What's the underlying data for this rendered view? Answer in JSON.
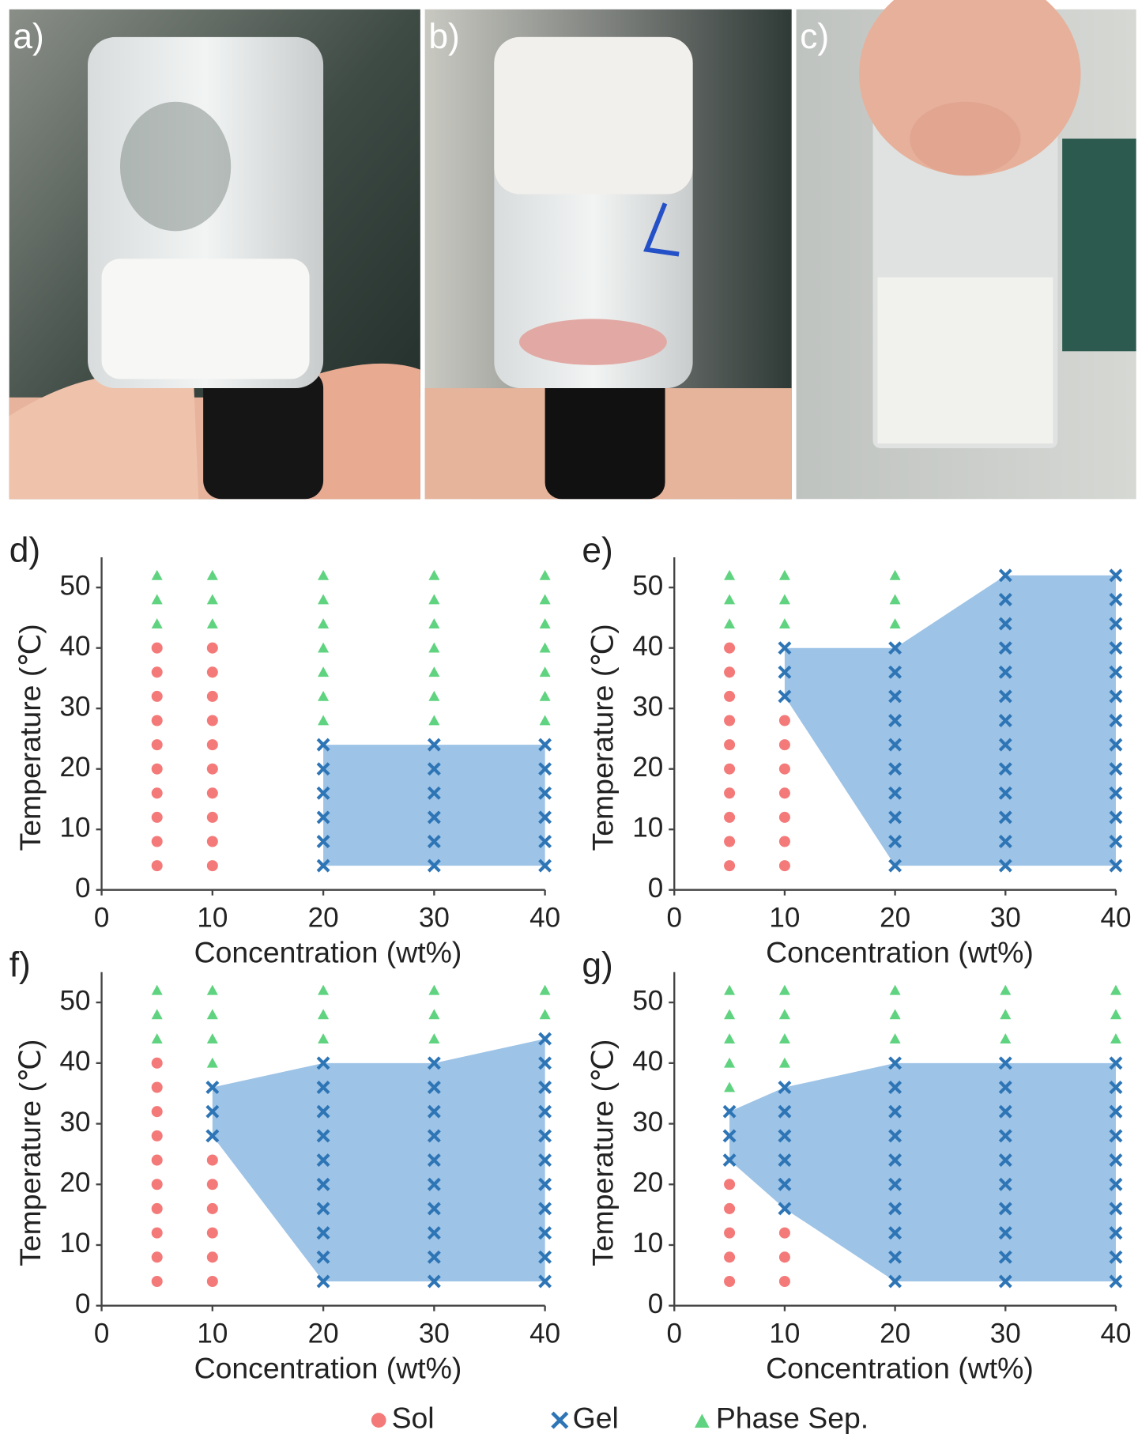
{
  "photos": [
    "a)",
    "b)",
    "c)"
  ],
  "chart_data": [
    {
      "type": "scatter",
      "label": "d)",
      "xlabel": "Concentration (wt%)",
      "ylabel": "Temperature (℃)",
      "xlim": [
        0,
        40
      ],
      "ylim": [
        0,
        55
      ],
      "xticks": [
        0,
        10,
        20,
        30,
        40
      ],
      "yticks": [
        0,
        10,
        20,
        30,
        40,
        50
      ],
      "area_color": "#9dc3e6",
      "series": [
        {
          "name": "Sol",
          "color": "#f47a7a",
          "marker": "circle",
          "x": [
            5,
            5,
            5,
            5,
            5,
            5,
            5,
            5,
            5,
            5,
            10,
            10,
            10,
            10,
            10,
            10,
            10,
            10,
            10,
            10
          ],
          "values": [
            4,
            8,
            12,
            16,
            20,
            24,
            28,
            32,
            36,
            40,
            4,
            8,
            12,
            16,
            20,
            24,
            28,
            32,
            36,
            40
          ]
        },
        {
          "name": "Gel",
          "color": "#2e75b6",
          "marker": "x",
          "x": [
            20,
            20,
            20,
            20,
            20,
            20,
            30,
            30,
            30,
            30,
            30,
            30,
            40,
            40,
            40,
            40,
            40,
            40
          ],
          "values": [
            4,
            8,
            12,
            16,
            20,
            24,
            4,
            8,
            12,
            16,
            20,
            24,
            4,
            8,
            12,
            16,
            20,
            24
          ]
        },
        {
          "name": "Phase Sep.",
          "color": "#5fd37f",
          "marker": "triangle",
          "x": [
            5,
            5,
            5,
            10,
            10,
            10,
            20,
            20,
            20,
            20,
            20,
            20,
            20,
            30,
            30,
            30,
            30,
            30,
            30,
            30,
            40,
            40,
            40,
            40,
            40,
            40,
            40
          ],
          "values": [
            44,
            48,
            52,
            44,
            48,
            52,
            28,
            32,
            36,
            40,
            44,
            48,
            52,
            28,
            32,
            36,
            40,
            44,
            48,
            52,
            28,
            32,
            36,
            40,
            44,
            48,
            52
          ]
        }
      ]
    },
    {
      "type": "scatter",
      "label": "e)",
      "xlabel": "Concentration (wt%)",
      "ylabel": "Temperature (℃)",
      "xlim": [
        0,
        40
      ],
      "ylim": [
        0,
        55
      ],
      "xticks": [
        0,
        10,
        20,
        30,
        40
      ],
      "yticks": [
        0,
        10,
        20,
        30,
        40,
        50
      ],
      "area_color": "#9dc3e6",
      "series": [
        {
          "name": "Sol",
          "color": "#f47a7a",
          "marker": "circle",
          "x": [
            5,
            5,
            5,
            5,
            5,
            5,
            5,
            5,
            5,
            5,
            10,
            10,
            10,
            10,
            10,
            10,
            10
          ],
          "values": [
            4,
            8,
            12,
            16,
            20,
            24,
            28,
            32,
            36,
            40,
            4,
            8,
            12,
            16,
            20,
            24,
            28
          ]
        },
        {
          "name": "Gel",
          "color": "#2e75b6",
          "marker": "x",
          "x": [
            10,
            10,
            10,
            20,
            20,
            20,
            20,
            20,
            20,
            20,
            20,
            20,
            20,
            30,
            30,
            30,
            30,
            30,
            30,
            30,
            30,
            30,
            30,
            30,
            30,
            30,
            40,
            40,
            40,
            40,
            40,
            40,
            40,
            40,
            40,
            40,
            40,
            40,
            40
          ],
          "values": [
            32,
            36,
            40,
            4,
            8,
            12,
            16,
            20,
            24,
            28,
            32,
            36,
            40,
            4,
            8,
            12,
            16,
            20,
            24,
            28,
            32,
            36,
            40,
            44,
            48,
            52,
            4,
            8,
            12,
            16,
            20,
            24,
            28,
            32,
            36,
            40,
            44,
            48,
            52
          ]
        },
        {
          "name": "Phase Sep.",
          "color": "#5fd37f",
          "marker": "triangle",
          "x": [
            5,
            5,
            5,
            10,
            10,
            10,
            20,
            20,
            20
          ],
          "values": [
            44,
            48,
            52,
            44,
            48,
            52,
            44,
            48,
            52
          ]
        }
      ]
    },
    {
      "type": "scatter",
      "label": "f)",
      "xlabel": "Concentration (wt%)",
      "ylabel": "Temperature (℃)",
      "xlim": [
        0,
        40
      ],
      "ylim": [
        0,
        55
      ],
      "xticks": [
        0,
        10,
        20,
        30,
        40
      ],
      "yticks": [
        0,
        10,
        20,
        30,
        40,
        50
      ],
      "area_color": "#9dc3e6",
      "series": [
        {
          "name": "Sol",
          "color": "#f47a7a",
          "marker": "circle",
          "x": [
            5,
            5,
            5,
            5,
            5,
            5,
            5,
            5,
            5,
            5,
            10,
            10,
            10,
            10,
            10,
            10
          ],
          "values": [
            4,
            8,
            12,
            16,
            20,
            24,
            28,
            32,
            36,
            40,
            4,
            8,
            12,
            16,
            20,
            24
          ]
        },
        {
          "name": "Gel",
          "color": "#2e75b6",
          "marker": "x",
          "x": [
            10,
            10,
            10,
            20,
            20,
            20,
            20,
            20,
            20,
            20,
            20,
            20,
            20,
            30,
            30,
            30,
            30,
            30,
            30,
            30,
            30,
            30,
            30,
            40,
            40,
            40,
            40,
            40,
            40,
            40,
            40,
            40,
            40,
            40
          ],
          "values": [
            28,
            32,
            36,
            4,
            8,
            12,
            16,
            20,
            24,
            28,
            32,
            36,
            40,
            4,
            8,
            12,
            16,
            20,
            24,
            28,
            32,
            36,
            40,
            4,
            8,
            12,
            16,
            20,
            24,
            28,
            32,
            36,
            40,
            44
          ]
        },
        {
          "name": "Phase Sep.",
          "color": "#5fd37f",
          "marker": "triangle",
          "x": [
            5,
            5,
            5,
            10,
            10,
            10,
            10,
            20,
            20,
            20,
            30,
            30,
            30,
            40,
            40
          ],
          "values": [
            44,
            48,
            52,
            40,
            44,
            48,
            52,
            44,
            48,
            52,
            44,
            48,
            52,
            48,
            52
          ]
        }
      ]
    },
    {
      "type": "scatter",
      "label": "g)",
      "xlabel": "Concentration (wt%)",
      "ylabel": "Temperature (℃)",
      "xlim": [
        0,
        40
      ],
      "ylim": [
        0,
        55
      ],
      "xticks": [
        0,
        10,
        20,
        30,
        40
      ],
      "yticks": [
        0,
        10,
        20,
        30,
        40,
        50
      ],
      "area_color": "#9dc3e6",
      "series": [
        {
          "name": "Sol",
          "color": "#f47a7a",
          "marker": "circle",
          "x": [
            5,
            5,
            5,
            5,
            5,
            10,
            10,
            10
          ],
          "values": [
            4,
            8,
            12,
            16,
            20,
            4,
            8,
            12
          ]
        },
        {
          "name": "Gel",
          "color": "#2e75b6",
          "marker": "x",
          "x": [
            5,
            5,
            5,
            10,
            10,
            10,
            10,
            10,
            10,
            20,
            20,
            20,
            20,
            20,
            20,
            20,
            20,
            20,
            20,
            30,
            30,
            30,
            30,
            30,
            30,
            30,
            30,
            30,
            30,
            40,
            40,
            40,
            40,
            40,
            40,
            40,
            40,
            40,
            40
          ],
          "values": [
            24,
            28,
            32,
            16,
            20,
            24,
            28,
            32,
            36,
            4,
            8,
            12,
            16,
            20,
            24,
            28,
            32,
            36,
            40,
            4,
            8,
            12,
            16,
            20,
            24,
            28,
            32,
            36,
            40,
            4,
            8,
            12,
            16,
            20,
            24,
            28,
            32,
            36,
            40
          ]
        },
        {
          "name": "Phase Sep.",
          "color": "#5fd37f",
          "marker": "triangle",
          "x": [
            5,
            5,
            5,
            5,
            5,
            10,
            10,
            10,
            10,
            20,
            20,
            20,
            30,
            30,
            30,
            40,
            40,
            40
          ],
          "values": [
            36,
            40,
            44,
            48,
            52,
            40,
            44,
            48,
            52,
            44,
            48,
            52,
            44,
            48,
            52,
            44,
            48,
            52
          ]
        }
      ]
    }
  ]
}
